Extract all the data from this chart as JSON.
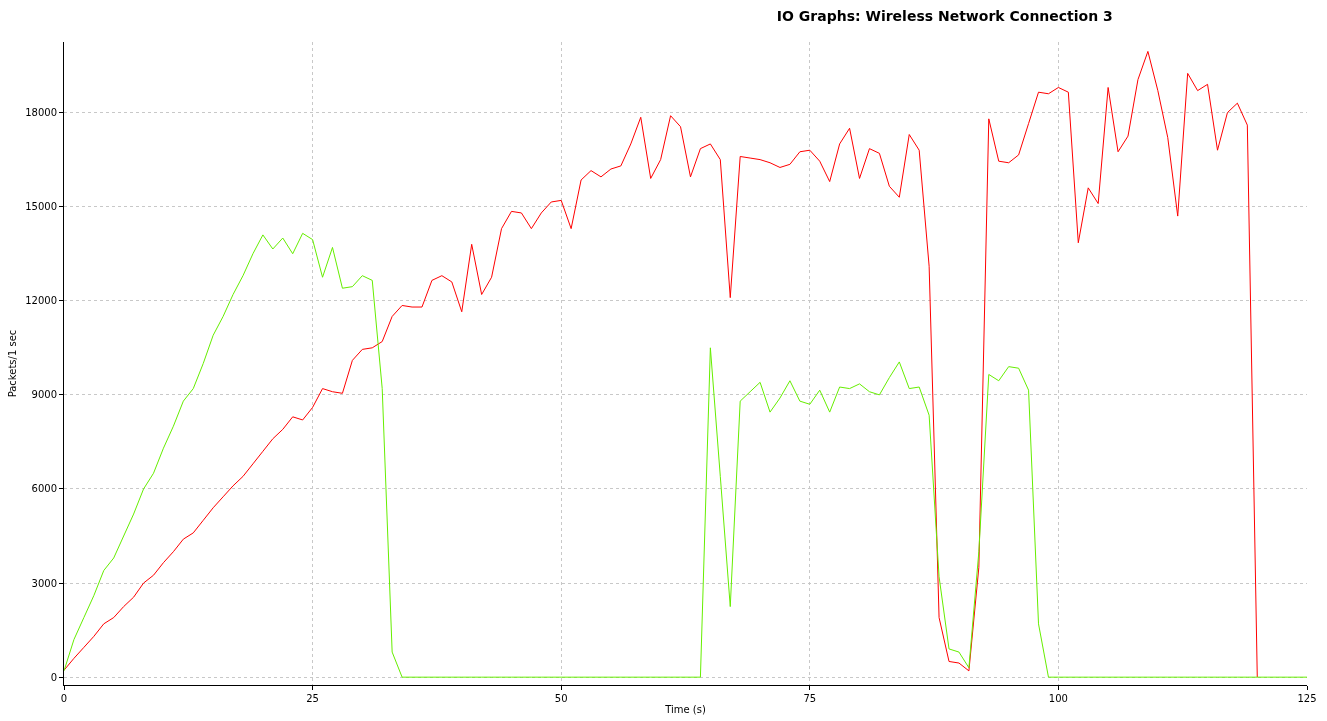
{
  "chart_data": {
    "type": "line",
    "title": "IO Graphs: Wireless Network Connection 3",
    "xlabel": "Time (s)",
    "ylabel": "Packets/1 sec",
    "x": [
      0,
      1,
      2,
      3,
      4,
      5,
      6,
      7,
      8,
      9,
      10,
      11,
      12,
      13,
      14,
      15,
      16,
      17,
      18,
      19,
      20,
      21,
      22,
      23,
      24,
      25,
      26,
      27,
      28,
      29,
      30,
      31,
      32,
      33,
      34,
      35,
      36,
      37,
      38,
      39,
      40,
      41,
      42,
      43,
      44,
      45,
      46,
      47,
      48,
      49,
      50,
      51,
      52,
      53,
      54,
      55,
      56,
      57,
      58,
      59,
      60,
      61,
      62,
      63,
      64,
      65,
      66,
      67,
      68,
      69,
      70,
      71,
      72,
      73,
      74,
      75,
      76,
      77,
      78,
      79,
      80,
      81,
      82,
      83,
      84,
      85,
      86,
      87,
      88,
      89,
      90,
      91,
      92,
      93,
      94,
      95,
      96,
      97,
      98,
      99,
      100,
      101,
      102,
      103,
      104,
      105,
      106,
      107,
      108,
      109,
      110,
      111,
      112,
      113,
      114,
      115,
      116,
      117,
      118,
      119,
      120,
      121,
      122,
      123,
      124,
      125
    ],
    "series": [
      {
        "color": "#ff0000",
        "values": [
          220,
          600,
          950,
          1300,
          1700,
          1900,
          2250,
          2550,
          3000,
          3250,
          3650,
          4000,
          4400,
          4600,
          5000,
          5400,
          5750,
          6100,
          6400,
          6800,
          7200,
          7600,
          7900,
          8300,
          8200,
          8600,
          9200,
          9100,
          9050,
          10100,
          10450,
          10500,
          10700,
          11500,
          11850,
          11800,
          11800,
          12650,
          12800,
          12600,
          11650,
          13800,
          12200,
          12750,
          14300,
          14850,
          14800,
          14300,
          14800,
          15150,
          15200,
          14300,
          15850,
          16150,
          15950,
          16200,
          16300,
          17000,
          17850,
          15900,
          16500,
          17900,
          17550,
          15950,
          16850,
          17000,
          16500,
          12100,
          16600,
          16550,
          16500,
          16400,
          16250,
          16350,
          16750,
          16800,
          16450,
          15800,
          17000,
          17500,
          15900,
          16850,
          16700,
          15650,
          15300,
          17300,
          16800,
          13100,
          1900,
          500,
          450,
          200,
          3500,
          17800,
          16450,
          16400,
          16650,
          17650,
          18650,
          18600,
          18800,
          18650,
          13850,
          15600,
          15100,
          18800,
          16750,
          17250,
          19050,
          19950,
          18700,
          17200,
          14700,
          19250,
          18700,
          18900,
          16800,
          18000,
          18300,
          17600,
          0,
          null,
          null,
          null,
          null,
          null
        ]
      },
      {
        "color": "#66ee00",
        "values": [
          200,
          1200,
          1900,
          2600,
          3400,
          3800,
          4500,
          5200,
          6000,
          6500,
          7300,
          8000,
          8800,
          9200,
          10000,
          10900,
          11500,
          12200,
          12800,
          13500,
          14100,
          13650,
          14000,
          13500,
          14150,
          13950,
          12750,
          13700,
          12400,
          12450,
          12800,
          12650,
          9200,
          800,
          0,
          0,
          0,
          0,
          0,
          0,
          0,
          0,
          0,
          0,
          0,
          0,
          0,
          0,
          0,
          0,
          0,
          0,
          0,
          0,
          0,
          0,
          0,
          0,
          0,
          0,
          0,
          0,
          0,
          0,
          0,
          10500,
          6400,
          2250,
          8800,
          9100,
          9400,
          8450,
          8900,
          9450,
          8800,
          8700,
          9150,
          8450,
          9250,
          9200,
          9350,
          9100,
          9000,
          9550,
          10050,
          9200,
          9250,
          8350,
          3200,
          900,
          800,
          300,
          4000,
          9650,
          9450,
          9900,
          9850,
          9150,
          1700,
          0,
          0,
          0,
          0,
          0,
          0,
          0,
          0,
          0,
          0,
          0,
          0,
          0,
          0,
          0,
          0,
          0,
          0,
          0,
          0,
          0,
          0,
          0,
          0,
          0,
          0,
          0
        ]
      }
    ],
    "xlim": [
      0,
      125
    ],
    "xticks": [
      0,
      25,
      50,
      75,
      100,
      125
    ],
    "ylim": [
      -250,
      20250
    ],
    "yticks": [
      0,
      3000,
      6000,
      9000,
      12000,
      15000,
      18000
    ],
    "grid": true,
    "marker": "none",
    "line_style": "solid"
  }
}
